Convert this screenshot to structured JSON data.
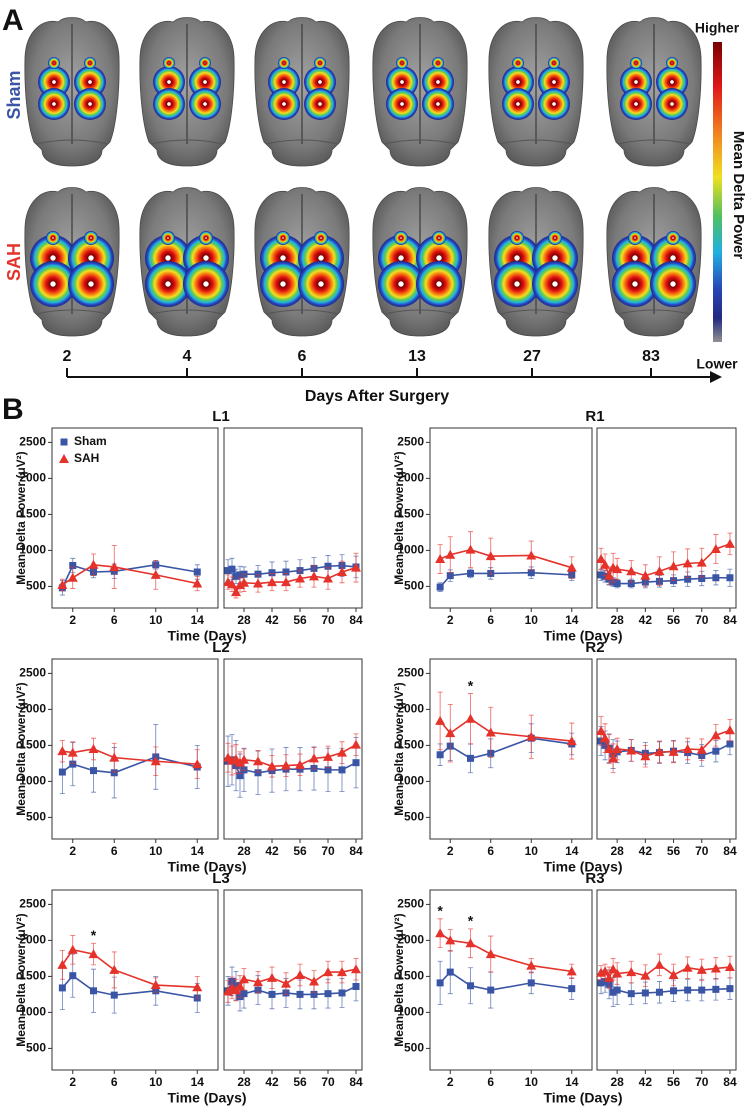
{
  "panel_a": {
    "label": "A",
    "rows": [
      "Sham",
      "SAH"
    ],
    "days": [
      2,
      4,
      6,
      13,
      27,
      83
    ],
    "axis_label": "Days After Surgery",
    "colorbar": {
      "title": "Mean Delta Power",
      "high": "Higher",
      "low": "Lower"
    }
  },
  "panel_b_label": "B",
  "chart_data": [
    {
      "type": "line",
      "title": "L1",
      "x_label": "Time (Days)",
      "y_label": "Mean Delta Power (μV²)",
      "ylim": [
        200,
        2700
      ],
      "yticks": [
        500,
        1000,
        1500,
        2000,
        2500
      ],
      "x_panels": [
        {
          "xlim": [
            0,
            16
          ],
          "xticks": [
            2,
            6,
            10,
            14
          ]
        },
        {
          "xlim": [
            18,
            87
          ],
          "xticks": [
            28,
            42,
            56,
            70,
            84
          ]
        }
      ],
      "x": [
        1,
        2,
        4,
        6,
        10,
        14,
        20,
        22,
        24,
        26,
        28,
        35,
        42,
        49,
        56,
        63,
        70,
        77,
        84
      ],
      "legend": "upper left",
      "series": [
        {
          "name": "Sham",
          "color": "#3a55a6",
          "marker": "square",
          "values": [
            480,
            790,
            700,
            710,
            800,
            700,
            720,
            740,
            640,
            660,
            670,
            670,
            690,
            700,
            720,
            750,
            780,
            790,
            770
          ],
          "errors": [
            100,
            100,
            80,
            100,
            60,
            100,
            150,
            150,
            100,
            120,
            100,
            120,
            150,
            150,
            150,
            150,
            150,
            150,
            150
          ]
        },
        {
          "name": "SAH",
          "color": "#e5322b",
          "marker": "triangle",
          "values": [
            520,
            620,
            800,
            770,
            660,
            540,
            560,
            530,
            420,
            520,
            550,
            540,
            560,
            560,
            610,
            640,
            610,
            700,
            760
          ],
          "errors": [
            80,
            150,
            150,
            300,
            200,
            100,
            100,
            100,
            80,
            100,
            120,
            120,
            120,
            120,
            120,
            150,
            150,
            150,
            200
          ]
        }
      ]
    },
    {
      "type": "line",
      "title": "R1",
      "x_label": "Time (Days)",
      "y_label": "Mean Delta Power (μV²)",
      "ylim": [
        200,
        2700
      ],
      "yticks": [
        500,
        1000,
        1500,
        2000,
        2500
      ],
      "x_panels": [
        {
          "xlim": [
            0,
            16
          ],
          "xticks": [
            2,
            6,
            10,
            14
          ]
        },
        {
          "xlim": [
            18,
            87
          ],
          "xticks": [
            28,
            42,
            56,
            70,
            84
          ]
        }
      ],
      "x": [
        1,
        2,
        4,
        6,
        10,
        14,
        20,
        22,
        24,
        26,
        28,
        35,
        42,
        49,
        56,
        63,
        70,
        77,
        84
      ],
      "series": [
        {
          "color": "#3a55a6",
          "marker": "square",
          "values": [
            490,
            650,
            680,
            680,
            690,
            660,
            660,
            640,
            600,
            560,
            540,
            540,
            560,
            570,
            580,
            600,
            610,
            620,
            620
          ],
          "errors": [
            60,
            80,
            60,
            80,
            80,
            80,
            80,
            80,
            80,
            60,
            60,
            60,
            80,
            80,
            80,
            100,
            100,
            100,
            120
          ]
        },
        {
          "color": "#e5322b",
          "marker": "triangle",
          "values": [
            880,
            940,
            1010,
            920,
            930,
            760,
            880,
            800,
            650,
            760,
            740,
            710,
            650,
            710,
            780,
            820,
            830,
            1020,
            1090
          ],
          "errors": [
            200,
            250,
            250,
            250,
            200,
            150,
            150,
            150,
            120,
            200,
            150,
            150,
            150,
            200,
            200,
            200,
            200,
            200,
            150
          ]
        }
      ]
    },
    {
      "type": "line",
      "title": "L2",
      "x_label": "Time (Days)",
      "y_label": "Mean Delta Power (μV²)",
      "ylim": [
        200,
        2700
      ],
      "yticks": [
        500,
        1000,
        1500,
        2000,
        2500
      ],
      "x_panels": [
        {
          "xlim": [
            0,
            16
          ],
          "xticks": [
            2,
            6,
            10,
            14
          ]
        },
        {
          "xlim": [
            18,
            87
          ],
          "xticks": [
            28,
            42,
            56,
            70,
            84
          ]
        }
      ],
      "x": [
        1,
        2,
        4,
        6,
        10,
        14,
        20,
        22,
        24,
        26,
        28,
        35,
        42,
        49,
        56,
        63,
        70,
        77,
        84
      ],
      "series": [
        {
          "color": "#3a55a6",
          "marker": "square",
          "values": [
            1130,
            1240,
            1150,
            1120,
            1340,
            1200,
            1280,
            1300,
            1220,
            1080,
            1160,
            1120,
            1150,
            1170,
            1170,
            1180,
            1160,
            1160,
            1260
          ],
          "errors": [
            300,
            300,
            300,
            350,
            450,
            300,
            350,
            350,
            350,
            300,
            300,
            300,
            300,
            300,
            300,
            300,
            300,
            300,
            350
          ]
        },
        {
          "color": "#e5322b",
          "marker": "triangle",
          "values": [
            1420,
            1400,
            1450,
            1330,
            1280,
            1240,
            1330,
            1290,
            1310,
            1260,
            1300,
            1280,
            1210,
            1220,
            1230,
            1320,
            1340,
            1400,
            1510
          ],
          "errors": [
            150,
            150,
            150,
            200,
            200,
            200,
            200,
            200,
            200,
            150,
            150,
            150,
            150,
            150,
            150,
            150,
            150,
            150,
            150
          ]
        }
      ]
    },
    {
      "type": "line",
      "title": "R2",
      "x_label": "Time (Days)",
      "y_label": "Mean Delta Power (μV²)",
      "ylim": [
        200,
        2700
      ],
      "yticks": [
        500,
        1000,
        1500,
        2000,
        2500
      ],
      "x_panels": [
        {
          "xlim": [
            0,
            16
          ],
          "xticks": [
            2,
            6,
            10,
            14
          ]
        },
        {
          "xlim": [
            18,
            87
          ],
          "xticks": [
            28,
            42,
            56,
            70,
            84
          ]
        }
      ],
      "x": [
        1,
        2,
        4,
        6,
        10,
        14,
        20,
        22,
        24,
        26,
        28,
        35,
        42,
        49,
        56,
        63,
        70,
        77,
        84
      ],
      "annotations": [
        {
          "text": "*",
          "x": 4
        }
      ],
      "series": [
        {
          "color": "#3a55a6",
          "marker": "square",
          "values": [
            1370,
            1490,
            1320,
            1390,
            1600,
            1520,
            1560,
            1500,
            1460,
            1380,
            1410,
            1430,
            1390,
            1400,
            1420,
            1400,
            1360,
            1420,
            1520
          ],
          "errors": [
            150,
            200,
            200,
            200,
            200,
            150,
            200,
            200,
            200,
            200,
            150,
            150,
            150,
            150,
            150,
            150,
            150,
            150,
            150
          ]
        },
        {
          "color": "#e5322b",
          "marker": "triangle",
          "values": [
            1840,
            1670,
            1870,
            1680,
            1620,
            1560,
            1700,
            1600,
            1450,
            1320,
            1450,
            1430,
            1350,
            1410,
            1410,
            1450,
            1440,
            1640,
            1710
          ],
          "errors": [
            400,
            400,
            350,
            350,
            300,
            250,
            200,
            200,
            200,
            200,
            150,
            150,
            150,
            150,
            150,
            150,
            150,
            150,
            150
          ]
        }
      ]
    },
    {
      "type": "line",
      "title": "L3",
      "x_label": "Time (Days)",
      "y_label": "Mean Delta Power (μV²)",
      "ylim": [
        200,
        2700
      ],
      "yticks": [
        500,
        1000,
        1500,
        2000,
        2500
      ],
      "x_panels": [
        {
          "xlim": [
            0,
            16
          ],
          "xticks": [
            2,
            6,
            10,
            14
          ]
        },
        {
          "xlim": [
            18,
            87
          ],
          "xticks": [
            28,
            42,
            56,
            70,
            84
          ]
        }
      ],
      "x": [
        1,
        2,
        4,
        6,
        10,
        14,
        20,
        22,
        24,
        26,
        28,
        35,
        42,
        49,
        56,
        63,
        70,
        77,
        84
      ],
      "annotations": [
        {
          "text": "*",
          "x": 4
        }
      ],
      "series": [
        {
          "color": "#3a55a6",
          "marker": "square",
          "values": [
            1340,
            1510,
            1300,
            1240,
            1300,
            1200,
            1300,
            1430,
            1370,
            1220,
            1260,
            1310,
            1250,
            1270,
            1250,
            1250,
            1260,
            1270,
            1360
          ],
          "errors": [
            300,
            300,
            300,
            250,
            200,
            200,
            200,
            200,
            200,
            200,
            200,
            200,
            200,
            200,
            200,
            200,
            200,
            200,
            200
          ]
        },
        {
          "color": "#e5322b",
          "marker": "triangle",
          "values": [
            1660,
            1870,
            1810,
            1590,
            1380,
            1350,
            1290,
            1340,
            1310,
            1360,
            1460,
            1420,
            1480,
            1400,
            1520,
            1430,
            1560,
            1560,
            1600
          ],
          "errors": [
            200,
            200,
            150,
            250,
            100,
            150,
            150,
            150,
            150,
            150,
            150,
            150,
            150,
            150,
            150,
            150,
            150,
            150,
            150
          ]
        }
      ]
    },
    {
      "type": "line",
      "title": "R3",
      "x_label": "Time (Days)",
      "y_label": "Mean Delta Power (μV²)",
      "ylim": [
        200,
        2700
      ],
      "yticks": [
        500,
        1000,
        1500,
        2000,
        2500
      ],
      "x_panels": [
        {
          "xlim": [
            0,
            16
          ],
          "xticks": [
            2,
            6,
            10,
            14
          ]
        },
        {
          "xlim": [
            18,
            87
          ],
          "xticks": [
            28,
            42,
            56,
            70,
            84
          ]
        }
      ],
      "x": [
        1,
        2,
        4,
        6,
        10,
        14,
        20,
        22,
        24,
        26,
        28,
        35,
        42,
        49,
        56,
        63,
        70,
        77,
        84
      ],
      "annotations": [
        {
          "text": "*",
          "x": 1
        },
        {
          "text": "*",
          "x": 4
        }
      ],
      "series": [
        {
          "color": "#3a55a6",
          "marker": "square",
          "values": [
            1410,
            1560,
            1370,
            1310,
            1410,
            1330,
            1410,
            1430,
            1390,
            1280,
            1310,
            1260,
            1270,
            1280,
            1300,
            1310,
            1310,
            1320,
            1330
          ],
          "errors": [
            300,
            300,
            250,
            250,
            150,
            150,
            150,
            150,
            200,
            200,
            200,
            150,
            150,
            150,
            150,
            150,
            150,
            150,
            150
          ]
        },
        {
          "color": "#e5322b",
          "marker": "triangle",
          "values": [
            2100,
            2000,
            1960,
            1810,
            1650,
            1570,
            1550,
            1570,
            1480,
            1600,
            1540,
            1560,
            1510,
            1660,
            1520,
            1620,
            1590,
            1610,
            1630
          ],
          "errors": [
            200,
            150,
            200,
            250,
            100,
            100,
            100,
            100,
            150,
            150,
            150,
            150,
            150,
            150,
            150,
            150,
            150,
            150,
            150
          ]
        }
      ]
    }
  ]
}
